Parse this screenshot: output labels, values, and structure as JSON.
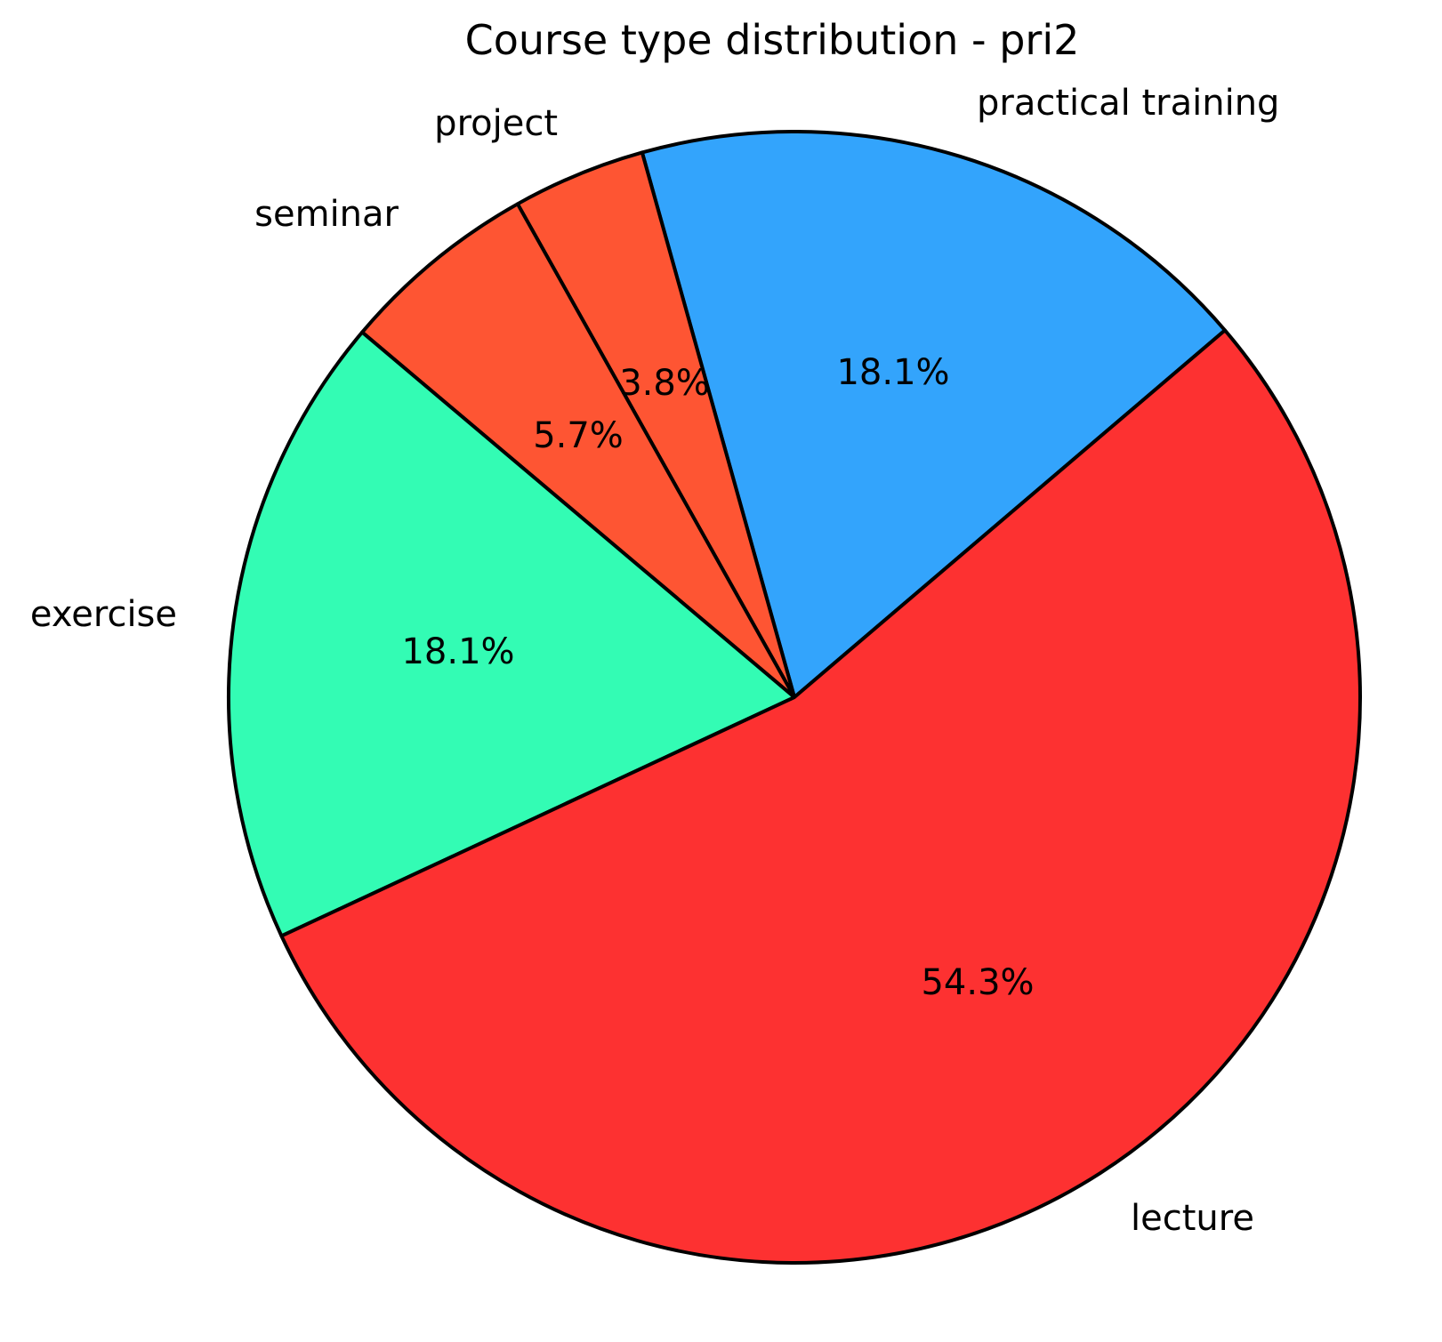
{
  "title": "Course type distribution - pri2",
  "chart_data": {
    "type": "pie",
    "title": "Course type distribution - pri2",
    "start_angle_deg": 40.45,
    "direction": "counterclockwise",
    "edge_color": "#000000",
    "background": "#ffffff",
    "legend": "none",
    "label_distance": 1.1,
    "pct_distance": 0.6,
    "segments": [
      {
        "label": "practical training",
        "value_pct": 18.1,
        "pct_label": "18.1%",
        "color": "#33a4fc"
      },
      {
        "label": "project",
        "value_pct": 3.8,
        "pct_label": "3.8%",
        "color": "#fe5533"
      },
      {
        "label": "seminar",
        "value_pct": 5.7,
        "pct_label": "5.7%",
        "color": "#fe5533"
      },
      {
        "label": "exercise",
        "value_pct": 18.1,
        "pct_label": "18.1%",
        "color": "#33fcb4"
      },
      {
        "label": "lecture",
        "value_pct": 54.3,
        "pct_label": "54.3%",
        "color": "#fd3131"
      }
    ]
  }
}
